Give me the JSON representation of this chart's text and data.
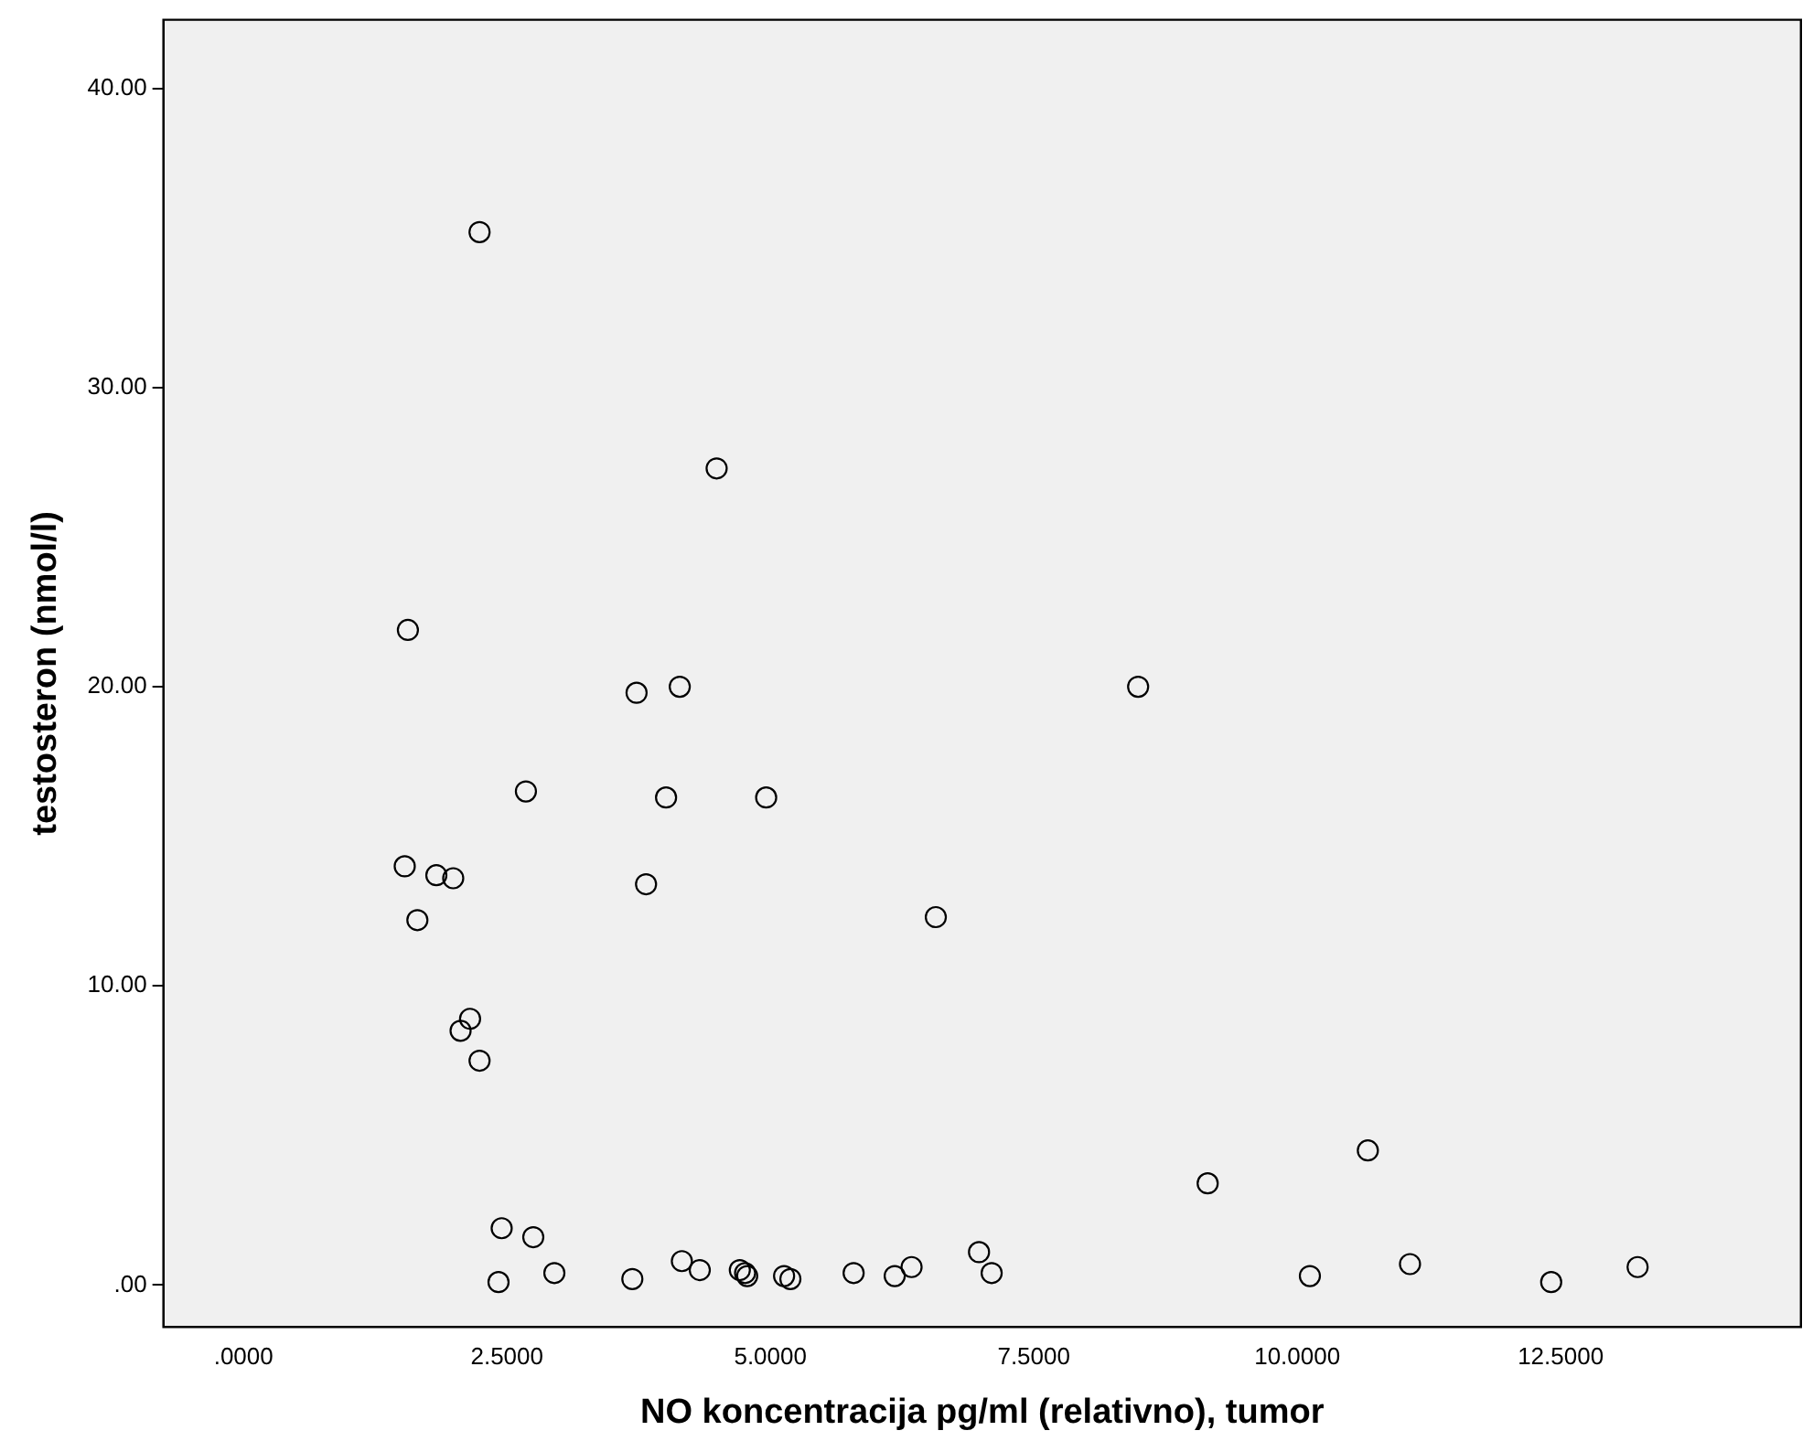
{
  "chart_data": {
    "type": "scatter",
    "xlabel": "NO koncentracija pg/ml (relativno), tumor",
    "ylabel": "testosteron (nmol/l)",
    "xlim": [
      -0.76,
      14.78
    ],
    "ylim": [
      -1.4,
      42.3
    ],
    "xticks": [
      {
        "value": 0,
        "label": ".0000"
      },
      {
        "value": 2.5,
        "label": "2.5000"
      },
      {
        "value": 5,
        "label": "5.0000"
      },
      {
        "value": 7.5,
        "label": "7.5000"
      },
      {
        "value": 10,
        "label": "10.0000"
      },
      {
        "value": 12.5,
        "label": "12.5000"
      }
    ],
    "yticks": [
      {
        "value": 0,
        "label": ".00"
      },
      {
        "value": 10,
        "label": "10.00"
      },
      {
        "value": 20,
        "label": "20.00"
      },
      {
        "value": 30,
        "label": "30.00"
      },
      {
        "value": 40,
        "label": "40.00"
      }
    ],
    "grid": false,
    "legend": false,
    "marker": "circle",
    "series": [
      {
        "color": "#000000",
        "x": [
          2.24,
          4.49,
          1.56,
          3.73,
          4.14,
          8.49,
          2.68,
          4.01,
          4.96,
          1.53,
          1.83,
          1.99,
          3.82,
          1.65,
          6.57,
          2.15,
          2.06,
          2.24,
          9.15,
          10.67,
          2.45,
          2.75,
          2.42,
          2.95,
          3.69,
          4.16,
          4.33,
          4.71,
          4.76,
          4.78,
          5.13,
          5.19,
          5.79,
          6.18,
          6.34,
          6.98,
          7.1,
          10.12,
          11.07,
          12.41,
          13.23
        ],
        "values": [
          35.2,
          27.3,
          21.9,
          19.8,
          20.0,
          20.0,
          16.5,
          16.3,
          16.3,
          14.0,
          13.7,
          13.6,
          13.4,
          12.2,
          12.3,
          8.9,
          8.5,
          7.5,
          3.4,
          4.5,
          1.9,
          1.6,
          0.1,
          0.4,
          0.2,
          0.8,
          0.5,
          0.5,
          0.4,
          0.3,
          0.3,
          0.2,
          0.4,
          0.3,
          0.6,
          1.1,
          0.4,
          0.3,
          0.7,
          0.1,
          0.6
        ]
      }
    ]
  }
}
